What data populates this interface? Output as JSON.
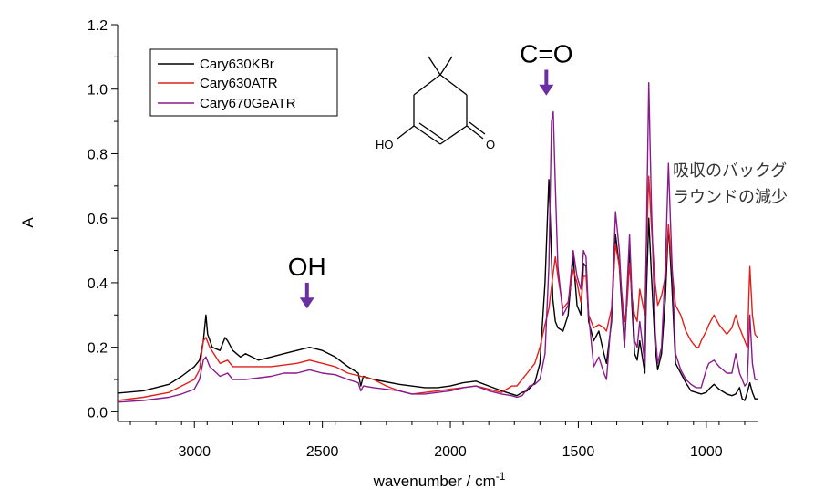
{
  "chart_data": {
    "type": "line",
    "title": "",
    "xlabel": "wavenumber / cm",
    "xlabel_sup": "-1",
    "ylabel": "A",
    "xlim": [
      3300,
      800
    ],
    "ylim": [
      -0.03,
      1.2
    ],
    "x_reversed": true,
    "xticks": [
      3000,
      2500,
      2000,
      1500,
      1000
    ],
    "yticks": [
      0.0,
      0.2,
      0.4,
      0.6,
      0.8,
      1.0,
      1.2
    ],
    "ytick_labels": [
      "0.0",
      "0.2",
      "0.4",
      "0.6",
      "0.8",
      "1.0",
      "1.2"
    ],
    "grid": false,
    "legend_position": "top-left",
    "series": [
      {
        "name": "Cary630KBr",
        "color": "#000000",
        "points": [
          [
            3300,
            0.058
          ],
          [
            3200,
            0.065
          ],
          [
            3100,
            0.085
          ],
          [
            3050,
            0.11
          ],
          [
            3000,
            0.14
          ],
          [
            2980,
            0.16
          ],
          [
            2965,
            0.22
          ],
          [
            2955,
            0.3
          ],
          [
            2948,
            0.24
          ],
          [
            2930,
            0.2
          ],
          [
            2900,
            0.19
          ],
          [
            2880,
            0.23
          ],
          [
            2870,
            0.22
          ],
          [
            2850,
            0.19
          ],
          [
            2820,
            0.17
          ],
          [
            2800,
            0.18
          ],
          [
            2750,
            0.16
          ],
          [
            2700,
            0.17
          ],
          [
            2650,
            0.18
          ],
          [
            2600,
            0.19
          ],
          [
            2550,
            0.2
          ],
          [
            2500,
            0.19
          ],
          [
            2450,
            0.17
          ],
          [
            2400,
            0.14
          ],
          [
            2360,
            0.12
          ],
          [
            2350,
            0.08
          ],
          [
            2340,
            0.11
          ],
          [
            2300,
            0.1
          ],
          [
            2200,
            0.085
          ],
          [
            2100,
            0.075
          ],
          [
            2050,
            0.075
          ],
          [
            2000,
            0.08
          ],
          [
            1950,
            0.09
          ],
          [
            1900,
            0.095
          ],
          [
            1850,
            0.08
          ],
          [
            1800,
            0.065
          ],
          [
            1760,
            0.055
          ],
          [
            1740,
            0.05
          ],
          [
            1720,
            0.06
          ],
          [
            1700,
            0.065
          ],
          [
            1670,
            0.09
          ],
          [
            1650,
            0.15
          ],
          [
            1630,
            0.4
          ],
          [
            1615,
            0.72
          ],
          [
            1610,
            0.6
          ],
          [
            1600,
            0.35
          ],
          [
            1590,
            0.28
          ],
          [
            1580,
            0.26
          ],
          [
            1560,
            0.25
          ],
          [
            1540,
            0.3
          ],
          [
            1520,
            0.48
          ],
          [
            1505,
            0.33
          ],
          [
            1490,
            0.3
          ],
          [
            1480,
            0.46
          ],
          [
            1470,
            0.45
          ],
          [
            1460,
            0.28
          ],
          [
            1440,
            0.22
          ],
          [
            1420,
            0.25
          ],
          [
            1400,
            0.18
          ],
          [
            1390,
            0.15
          ],
          [
            1370,
            0.28
          ],
          [
            1355,
            0.55
          ],
          [
            1340,
            0.45
          ],
          [
            1320,
            0.2
          ],
          [
            1310,
            0.35
          ],
          [
            1300,
            0.5
          ],
          [
            1290,
            0.32
          ],
          [
            1280,
            0.18
          ],
          [
            1270,
            0.16
          ],
          [
            1260,
            0.22
          ],
          [
            1240,
            0.12
          ],
          [
            1235,
            0.35
          ],
          [
            1225,
            0.6
          ],
          [
            1215,
            0.43
          ],
          [
            1200,
            0.2
          ],
          [
            1190,
            0.13
          ],
          [
            1175,
            0.18
          ],
          [
            1160,
            0.35
          ],
          [
            1148,
            0.58
          ],
          [
            1135,
            0.4
          ],
          [
            1120,
            0.15
          ],
          [
            1100,
            0.12
          ],
          [
            1080,
            0.09
          ],
          [
            1060,
            0.065
          ],
          [
            1040,
            0.06
          ],
          [
            1020,
            0.055
          ],
          [
            1000,
            0.06
          ],
          [
            990,
            0.07
          ],
          [
            970,
            0.085
          ],
          [
            950,
            0.07
          ],
          [
            920,
            0.055
          ],
          [
            900,
            0.05
          ],
          [
            885,
            0.055
          ],
          [
            870,
            0.075
          ],
          [
            860,
            0.04
          ],
          [
            850,
            0.035
          ],
          [
            840,
            0.06
          ],
          [
            830,
            0.09
          ],
          [
            820,
            0.06
          ],
          [
            810,
            0.04
          ],
          [
            800,
            0.04
          ]
        ]
      },
      {
        "name": "Cary630ATR",
        "color": "#e0201a",
        "points": [
          [
            3300,
            0.035
          ],
          [
            3200,
            0.045
          ],
          [
            3100,
            0.06
          ],
          [
            3050,
            0.08
          ],
          [
            3000,
            0.1
          ],
          [
            2980,
            0.13
          ],
          [
            2965,
            0.22
          ],
          [
            2955,
            0.23
          ],
          [
            2940,
            0.2
          ],
          [
            2900,
            0.15
          ],
          [
            2870,
            0.16
          ],
          [
            2850,
            0.14
          ],
          [
            2800,
            0.14
          ],
          [
            2700,
            0.14
          ],
          [
            2600,
            0.15
          ],
          [
            2550,
            0.16
          ],
          [
            2500,
            0.15
          ],
          [
            2450,
            0.14
          ],
          [
            2400,
            0.12
          ],
          [
            2350,
            0.11
          ],
          [
            2300,
            0.1
          ],
          [
            2250,
            0.08
          ],
          [
            2200,
            0.065
          ],
          [
            2150,
            0.055
          ],
          [
            2100,
            0.06
          ],
          [
            2050,
            0.065
          ],
          [
            2000,
            0.07
          ],
          [
            1950,
            0.075
          ],
          [
            1900,
            0.08
          ],
          [
            1850,
            0.07
          ],
          [
            1800,
            0.06
          ],
          [
            1780,
            0.07
          ],
          [
            1760,
            0.08
          ],
          [
            1740,
            0.08
          ],
          [
            1720,
            0.1
          ],
          [
            1700,
            0.12
          ],
          [
            1690,
            0.13
          ],
          [
            1670,
            0.15
          ],
          [
            1650,
            0.2
          ],
          [
            1630,
            0.27
          ],
          [
            1615,
            0.32
          ],
          [
            1600,
            0.42
          ],
          [
            1590,
            0.48
          ],
          [
            1580,
            0.42
          ],
          [
            1560,
            0.32
          ],
          [
            1540,
            0.34
          ],
          [
            1520,
            0.44
          ],
          [
            1505,
            0.4
          ],
          [
            1490,
            0.34
          ],
          [
            1480,
            0.42
          ],
          [
            1470,
            0.42
          ],
          [
            1460,
            0.3
          ],
          [
            1440,
            0.26
          ],
          [
            1420,
            0.27
          ],
          [
            1400,
            0.26
          ],
          [
            1390,
            0.25
          ],
          [
            1370,
            0.32
          ],
          [
            1355,
            0.52
          ],
          [
            1340,
            0.45
          ],
          [
            1320,
            0.28
          ],
          [
            1310,
            0.33
          ],
          [
            1300,
            0.46
          ],
          [
            1290,
            0.35
          ],
          [
            1280,
            0.3
          ],
          [
            1270,
            0.28
          ],
          [
            1260,
            0.38
          ],
          [
            1240,
            0.3
          ],
          [
            1235,
            0.5
          ],
          [
            1225,
            0.73
          ],
          [
            1215,
            0.58
          ],
          [
            1200,
            0.4
          ],
          [
            1190,
            0.33
          ],
          [
            1175,
            0.36
          ],
          [
            1160,
            0.42
          ],
          [
            1148,
            0.58
          ],
          [
            1135,
            0.45
          ],
          [
            1120,
            0.33
          ],
          [
            1100,
            0.3
          ],
          [
            1080,
            0.25
          ],
          [
            1060,
            0.22
          ],
          [
            1040,
            0.2
          ],
          [
            1030,
            0.2
          ],
          [
            1020,
            0.22
          ],
          [
            1000,
            0.25
          ],
          [
            990,
            0.27
          ],
          [
            970,
            0.3
          ],
          [
            950,
            0.27
          ],
          [
            920,
            0.24
          ],
          [
            900,
            0.26
          ],
          [
            885,
            0.3
          ],
          [
            870,
            0.26
          ],
          [
            860,
            0.24
          ],
          [
            850,
            0.22
          ],
          [
            840,
            0.2
          ],
          [
            830,
            0.45
          ],
          [
            820,
            0.3
          ],
          [
            810,
            0.24
          ],
          [
            800,
            0.23
          ]
        ]
      },
      {
        "name": "Cary670GeATR",
        "color": "#8a1a8c",
        "points": [
          [
            3300,
            0.03
          ],
          [
            3200,
            0.035
          ],
          [
            3100,
            0.045
          ],
          [
            3050,
            0.055
          ],
          [
            3000,
            0.07
          ],
          [
            2980,
            0.1
          ],
          [
            2965,
            0.16
          ],
          [
            2955,
            0.17
          ],
          [
            2940,
            0.14
          ],
          [
            2900,
            0.11
          ],
          [
            2870,
            0.12
          ],
          [
            2850,
            0.1
          ],
          [
            2800,
            0.1
          ],
          [
            2700,
            0.11
          ],
          [
            2650,
            0.12
          ],
          [
            2600,
            0.12
          ],
          [
            2550,
            0.13
          ],
          [
            2500,
            0.12
          ],
          [
            2450,
            0.115
          ],
          [
            2400,
            0.1
          ],
          [
            2360,
            0.09
          ],
          [
            2350,
            0.065
          ],
          [
            2340,
            0.08
          ],
          [
            2300,
            0.075
          ],
          [
            2200,
            0.065
          ],
          [
            2150,
            0.055
          ],
          [
            2100,
            0.055
          ],
          [
            2050,
            0.06
          ],
          [
            2000,
            0.065
          ],
          [
            1950,
            0.075
          ],
          [
            1900,
            0.08
          ],
          [
            1850,
            0.065
          ],
          [
            1800,
            0.055
          ],
          [
            1760,
            0.05
          ],
          [
            1740,
            0.045
          ],
          [
            1720,
            0.05
          ],
          [
            1700,
            0.07
          ],
          [
            1690,
            0.08
          ],
          [
            1670,
            0.085
          ],
          [
            1650,
            0.1
          ],
          [
            1630,
            0.18
          ],
          [
            1615,
            0.45
          ],
          [
            1605,
            0.9
          ],
          [
            1598,
            0.93
          ],
          [
            1590,
            0.7
          ],
          [
            1580,
            0.45
          ],
          [
            1560,
            0.3
          ],
          [
            1540,
            0.33
          ],
          [
            1520,
            0.5
          ],
          [
            1505,
            0.42
          ],
          [
            1490,
            0.38
          ],
          [
            1480,
            0.5
          ],
          [
            1470,
            0.48
          ],
          [
            1460,
            0.3
          ],
          [
            1440,
            0.14
          ],
          [
            1420,
            0.17
          ],
          [
            1400,
            0.12
          ],
          [
            1390,
            0.1
          ],
          [
            1370,
            0.3
          ],
          [
            1355,
            0.62
          ],
          [
            1340,
            0.5
          ],
          [
            1320,
            0.2
          ],
          [
            1310,
            0.38
          ],
          [
            1300,
            0.55
          ],
          [
            1290,
            0.35
          ],
          [
            1280,
            0.22
          ],
          [
            1270,
            0.2
          ],
          [
            1260,
            0.28
          ],
          [
            1240,
            0.15
          ],
          [
            1235,
            0.5
          ],
          [
            1225,
            1.02
          ],
          [
            1215,
            0.65
          ],
          [
            1200,
            0.25
          ],
          [
            1190,
            0.15
          ],
          [
            1175,
            0.2
          ],
          [
            1160,
            0.45
          ],
          [
            1148,
            0.77
          ],
          [
            1135,
            0.48
          ],
          [
            1120,
            0.18
          ],
          [
            1100,
            0.13
          ],
          [
            1080,
            0.1
          ],
          [
            1060,
            0.085
          ],
          [
            1040,
            0.075
          ],
          [
            1020,
            0.075
          ],
          [
            1000,
            0.13
          ],
          [
            990,
            0.15
          ],
          [
            970,
            0.16
          ],
          [
            950,
            0.14
          ],
          [
            920,
            0.12
          ],
          [
            900,
            0.12
          ],
          [
            885,
            0.18
          ],
          [
            870,
            0.12
          ],
          [
            860,
            0.1
          ],
          [
            850,
            0.08
          ],
          [
            840,
            0.09
          ],
          [
            830,
            0.3
          ],
          [
            820,
            0.15
          ],
          [
            810,
            0.1
          ],
          [
            800,
            0.1
          ]
        ]
      }
    ],
    "annotations": [
      {
        "text": "OH",
        "x": 2560,
        "arrow_from": 0.4,
        "arrow_to": 0.32,
        "color": "#6a2fa0"
      },
      {
        "text": "C=O",
        "x": 1625,
        "arrow_from": 1.06,
        "arrow_to": 0.98,
        "color": "#6a2fa0"
      }
    ],
    "note_lines": [
      "吸収のバックグ",
      "ラウンドの減少"
    ],
    "structure_labels": {
      "hydroxyl": "HO",
      "carbonyl_oxygen": "O"
    }
  }
}
